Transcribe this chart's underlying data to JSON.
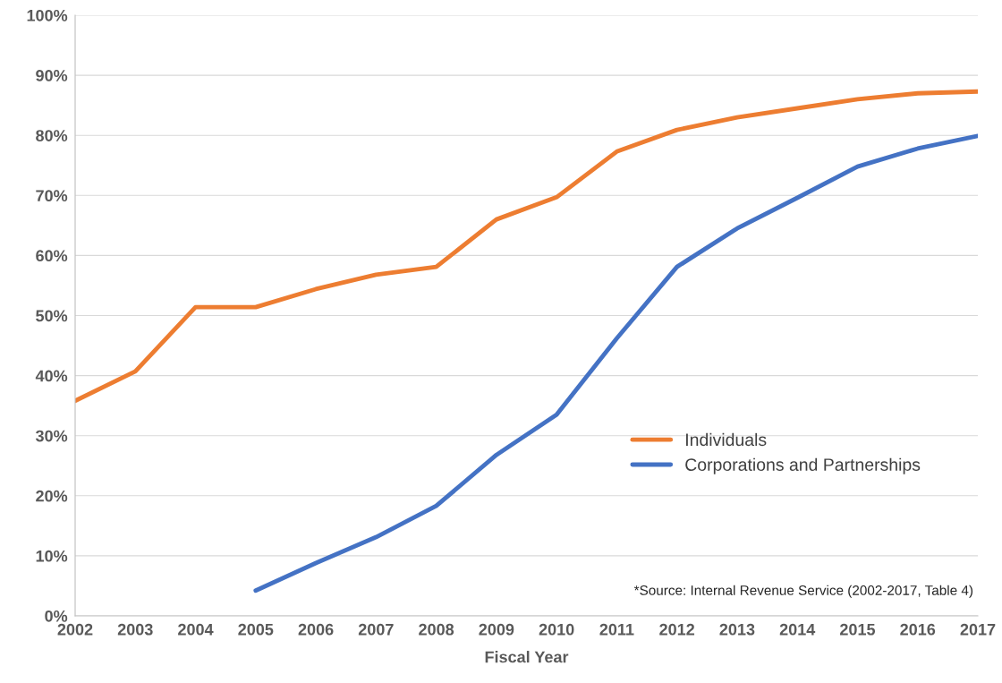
{
  "chart_data": {
    "type": "line",
    "xlabel": "Fiscal Year",
    "x": [
      2002,
      2003,
      2004,
      2005,
      2006,
      2007,
      2008,
      2009,
      2010,
      2011,
      2012,
      2013,
      2014,
      2015,
      2016,
      2017
    ],
    "series": [
      {
        "name": "Individuals",
        "color": "#ed7d31",
        "values": [
          35.8,
          40.7,
          51.4,
          51.4,
          54.4,
          56.8,
          58.1,
          66.0,
          69.7,
          77.3,
          80.9,
          83.0,
          84.5,
          86.0,
          87.0,
          87.3
        ]
      },
      {
        "name": "Corporations and Partnerships",
        "color": "#4472c4",
        "values": [
          null,
          null,
          null,
          4.2,
          8.8,
          13.1,
          18.3,
          26.8,
          33.5,
          46.2,
          58.1,
          64.5,
          69.6,
          74.8,
          77.8,
          79.9
        ]
      }
    ],
    "xlim": [
      2002,
      2017
    ],
    "xticks": [
      2002,
      2003,
      2004,
      2005,
      2006,
      2007,
      2008,
      2009,
      2010,
      2011,
      2012,
      2013,
      2014,
      2015,
      2016,
      2017
    ],
    "ylim": [
      0,
      100
    ],
    "yticks": [
      {
        "value": 0,
        "label": "0%"
      },
      {
        "value": 10,
        "label": "10%"
      },
      {
        "value": 20,
        "label": "20%"
      },
      {
        "value": 30,
        "label": "30%"
      },
      {
        "value": 40,
        "label": "40%"
      },
      {
        "value": 50,
        "label": "50%"
      },
      {
        "value": 60,
        "label": "60%"
      },
      {
        "value": 70,
        "label": "70%"
      },
      {
        "value": 80,
        "label": "80%"
      },
      {
        "value": 90,
        "label": "90%"
      },
      {
        "value": 100,
        "label": "100%"
      }
    ],
    "grid": "y",
    "legend": "right",
    "line_style": "solid",
    "marker": "none",
    "annotations": [
      "*Source: Internal Revenue Service (2002-2017, Table 4)"
    ]
  }
}
